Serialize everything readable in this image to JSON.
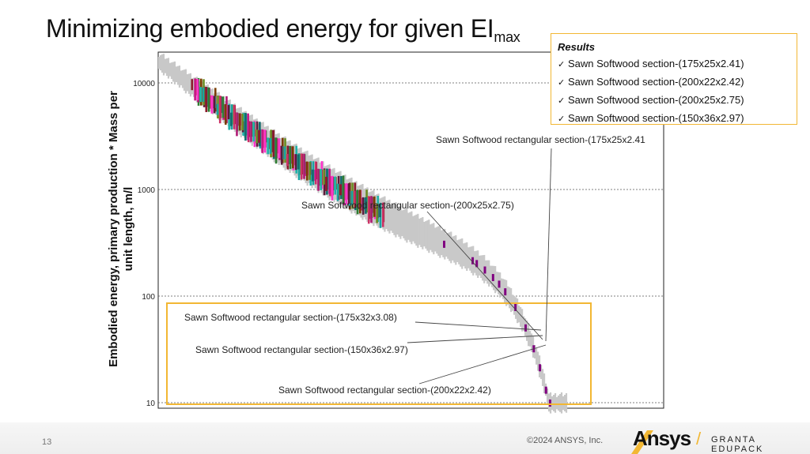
{
  "slide": {
    "title": "Minimizing embodied energy for given EI",
    "title_subscript": "max",
    "page_number": "13",
    "copyright": "©2024 ANSYS, Inc.",
    "brand_name": "Ansys",
    "brand_product": "GRANTA EDUPACK"
  },
  "results": {
    "title": "Results",
    "items": [
      "Sawn Softwood section-(175x25x2.41)",
      "Sawn Softwood section-(200x22x2.42)",
      "Sawn Softwood section-(200x25x2.75)",
      "Sawn Softwood section-(150x36x2.97)"
    ]
  },
  "chart_data": {
    "type": "scatter",
    "ylabel": "Embodied energy, primary production * Mass per unit length, m/l",
    "yscale": "log",
    "ylim": [
      9,
      20000
    ],
    "ytick_labels": [
      "10",
      "100",
      "1000",
      "10000"
    ],
    "ytick_values": [
      10,
      100,
      1000,
      10000
    ],
    "grid": true,
    "annotations": [
      {
        "label": "Sawn Softwood rectangular section-(175x25x2.41",
        "value": 37
      },
      {
        "label": "Sawn Softwood rectangular section-(200x25x2.75)",
        "value": 42
      },
      {
        "label": "Sawn Softwood rectangular section-(175x32x3.08)",
        "value": 45
      },
      {
        "label": "Sawn Softwood rectangular section-(150x36x2.97)",
        "value": 40
      },
      {
        "label": "Sawn Softwood rectangular section-(200x22x2.42)",
        "value": 35
      }
    ],
    "highlight_region": {
      "y_range": [
        9,
        110
      ],
      "color": "#f2b733"
    },
    "colors": {
      "envelope": "#c8c8c8",
      "selected": "#800080",
      "markers": [
        "#8b1a2b",
        "#ff33cc",
        "#1aa3a3",
        "#2e7d32",
        "#5c1a3a",
        "#cc3366",
        "#7a3d00",
        "#0f6b6b",
        "#b01a74",
        "#6b8e23",
        "#c71585",
        "#20b2aa"
      ]
    }
  }
}
